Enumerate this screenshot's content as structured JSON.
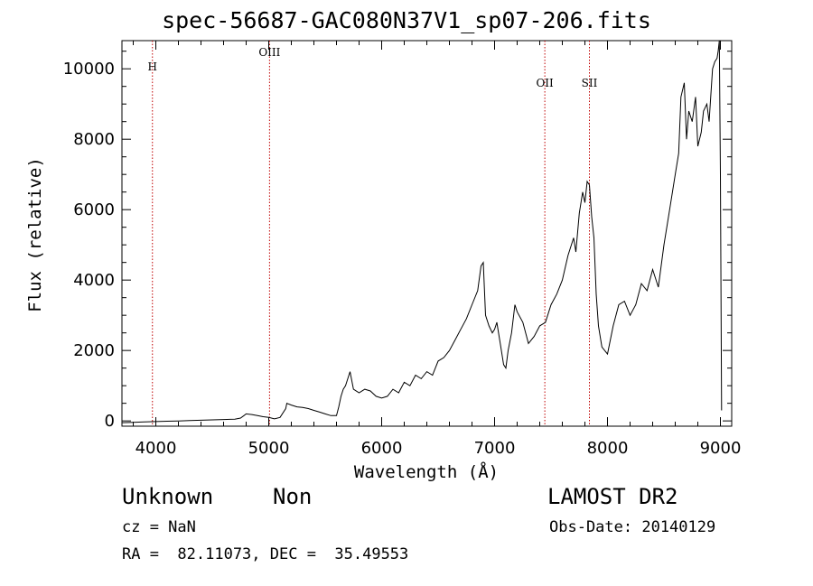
{
  "header": {
    "title": "spec-56687-GAC080N37V1_sp07-206.fits"
  },
  "info": {
    "object_class": "Unknown",
    "object_subclass": "Non",
    "survey": "LAMOST DR2",
    "redshift": "cz = NaN",
    "obs_date": "Obs-Date: 20140129",
    "coordinates": "RA =  82.11073, DEC =  35.49553"
  },
  "chart_data": {
    "type": "line",
    "title": "spec-56687-GAC080N37V1_sp07-206.fits",
    "xlabel": "Wavelength (Å)",
    "ylabel": "Flux (relative)",
    "xlim": [
      3700,
      9100
    ],
    "ylim": [
      -150,
      10800
    ],
    "xticks": [
      4000,
      5000,
      6000,
      7000,
      8000,
      9000
    ],
    "yticks": [
      0,
      2000,
      4000,
      6000,
      8000,
      10000
    ],
    "grid": false,
    "line_color": "#000000",
    "marker_color": "#c00000",
    "lines": [
      {
        "label": "H",
        "x": 3970
      },
      {
        "label": "OIII",
        "x": 5007
      },
      {
        "label": "OII",
        "x": 7445
      },
      {
        "label": "SII",
        "x": 7840
      }
    ],
    "series": [
      {
        "x": [
          3700,
          3800,
          3900,
          4000,
          4100,
          4200,
          4300,
          4400,
          4500,
          4600,
          4700,
          4750,
          4780,
          4800,
          4850,
          4900,
          4950,
          5000,
          5050,
          5100,
          5150,
          5160,
          5200,
          5250,
          5300,
          5350,
          5400,
          5450,
          5500,
          5550,
          5600,
          5620,
          5640,
          5660,
          5680,
          5700,
          5720,
          5750,
          5800,
          5850,
          5900,
          5950,
          6000,
          6050,
          6100,
          6150,
          6200,
          6250,
          6300,
          6350,
          6400,
          6450,
          6500,
          6550,
          6600,
          6650,
          6700,
          6750,
          6800,
          6850,
          6880,
          6900,
          6920,
          6950,
          6980,
          7000,
          7020,
          7050,
          7080,
          7100,
          7120,
          7150,
          7180,
          7200,
          7250,
          7300,
          7350,
          7400,
          7450,
          7500,
          7550,
          7600,
          7650,
          7700,
          7720,
          7750,
          7780,
          7800,
          7820,
          7840,
          7860,
          7880,
          7900,
          7920,
          7950,
          8000,
          8050,
          8100,
          8150,
          8200,
          8250,
          8300,
          8350,
          8400,
          8450,
          8500,
          8550,
          8600,
          8630,
          8650,
          8680,
          8700,
          8720,
          8750,
          8780,
          8800,
          8830,
          8850,
          8880,
          8900,
          8930,
          8950,
          8970,
          8980,
          8990,
          9000,
          9010
        ],
        "y": [
          -50,
          -40,
          -30,
          -20,
          -10,
          0,
          10,
          20,
          30,
          40,
          50,
          80,
          150,
          200,
          180,
          150,
          120,
          100,
          60,
          100,
          350,
          500,
          450,
          400,
          380,
          350,
          300,
          250,
          200,
          150,
          150,
          400,
          700,
          900,
          1000,
          1200,
          1400,
          900,
          800,
          900,
          850,
          700,
          650,
          700,
          900,
          800,
          1100,
          1000,
          1300,
          1200,
          1400,
          1300,
          1700,
          1800,
          2000,
          2300,
          2600,
          2900,
          3300,
          3700,
          4400,
          4500,
          3000,
          2700,
          2500,
          2600,
          2800,
          2200,
          1600,
          1500,
          2000,
          2500,
          3300,
          3100,
          2800,
          2200,
          2400,
          2700,
          2800,
          3300,
          3600,
          4000,
          4700,
          5200,
          4800,
          5900,
          6500,
          6200,
          6800,
          6700,
          5800,
          5200,
          3600,
          2700,
          2100,
          1900,
          2700,
          3300,
          3400,
          3000,
          3300,
          3900,
          3700,
          4300,
          3800,
          5000,
          6000,
          7000,
          7600,
          9200,
          9600,
          8000,
          8800,
          8500,
          9200,
          7800,
          8200,
          8800,
          9000,
          8500,
          10000,
          10200,
          10300,
          10500,
          10800,
          7000,
          300
        ]
      }
    ]
  }
}
